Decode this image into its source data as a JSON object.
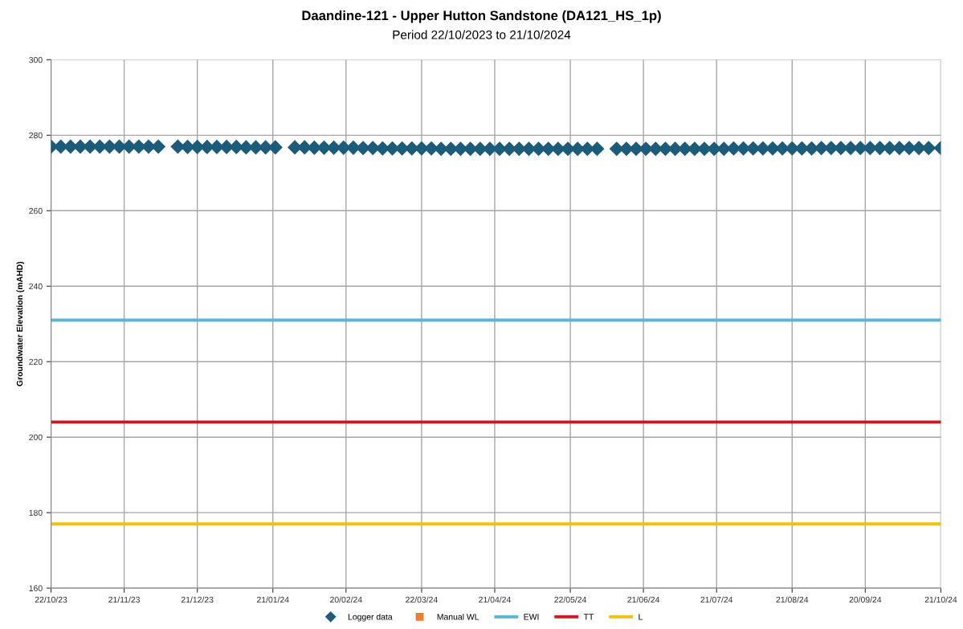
{
  "chart_data": {
    "type": "scatter",
    "title": "Daandine-121 - Upper Hutton Sandstone (DA121_HS_1p)",
    "subtitle": "Period 22/10/2023 to 21/10/2024",
    "ylabel": "Groundwater Elevation (mAHD)",
    "xlim": [
      "2023-10-22",
      "2024-10-21"
    ],
    "xticks": [
      {
        "value": "2023-10-22",
        "label": "22/10/23"
      },
      {
        "value": "2023-11-21",
        "label": "21/11/23"
      },
      {
        "value": "2023-12-21",
        "label": "21/12/23"
      },
      {
        "value": "2024-01-21",
        "label": "21/01/24"
      },
      {
        "value": "2024-02-20",
        "label": "20/02/24"
      },
      {
        "value": "2024-03-22",
        "label": "22/03/24"
      },
      {
        "value": "2024-04-21",
        "label": "21/04/24"
      },
      {
        "value": "2024-05-22",
        "label": "22/05/24"
      },
      {
        "value": "2024-06-21",
        "label": "21/06/24"
      },
      {
        "value": "2024-07-21",
        "label": "21/07/24"
      },
      {
        "value": "2024-08-21",
        "label": "21/08/24"
      },
      {
        "value": "2024-09-20",
        "label": "20/09/24"
      },
      {
        "value": "2024-10-21",
        "label": "21/10/24"
      }
    ],
    "ylim": [
      160,
      300
    ],
    "yticks": [
      160,
      180,
      200,
      220,
      240,
      260,
      280,
      300
    ],
    "grid": true,
    "legend": "bottom",
    "series": [
      {
        "name": "Logger data",
        "marker": "diamond",
        "color": "#1b5c7a",
        "x": [
          "2023-10-22",
          "2023-10-26",
          "2023-10-30",
          "2023-11-03",
          "2023-11-07",
          "2023-11-11",
          "2023-11-15",
          "2023-11-19",
          "2023-11-23",
          "2023-11-27",
          "2023-12-01",
          "2023-12-05",
          "2023-12-09",
          "2023-12-13",
          "2023-12-17",
          "2023-12-21",
          "2023-12-25",
          "2023-12-29",
          "2024-01-02",
          "2024-01-06",
          "2024-01-10",
          "2024-01-14",
          "2024-01-18",
          "2024-01-22",
          "2024-01-26",
          "2024-01-30",
          "2024-02-03",
          "2024-02-07",
          "2024-02-11",
          "2024-02-15",
          "2024-02-19",
          "2024-02-23",
          "2024-02-27",
          "2024-03-02",
          "2024-03-06",
          "2024-03-10",
          "2024-03-14",
          "2024-03-18",
          "2024-03-22",
          "2024-03-26",
          "2024-03-30",
          "2024-04-03",
          "2024-04-07",
          "2024-04-11",
          "2024-04-15",
          "2024-04-19",
          "2024-04-23",
          "2024-04-27",
          "2024-05-01",
          "2024-05-05",
          "2024-05-09",
          "2024-05-13",
          "2024-05-17",
          "2024-05-21",
          "2024-05-25",
          "2024-05-29",
          "2024-06-02",
          "2024-06-06",
          "2024-06-10",
          "2024-06-14",
          "2024-06-18",
          "2024-06-22",
          "2024-06-26",
          "2024-06-30",
          "2024-07-04",
          "2024-07-08",
          "2024-07-12",
          "2024-07-16",
          "2024-07-20",
          "2024-07-24",
          "2024-07-28",
          "2024-08-01",
          "2024-08-05",
          "2024-08-09",
          "2024-08-13",
          "2024-08-17",
          "2024-08-21",
          "2024-08-25",
          "2024-08-29",
          "2024-09-02",
          "2024-09-06",
          "2024-09-10",
          "2024-09-14",
          "2024-09-18",
          "2024-09-22",
          "2024-09-26",
          "2024-09-30",
          "2024-10-04",
          "2024-10-08",
          "2024-10-12",
          "2024-10-16",
          "2024-10-20",
          "2024-10-21"
        ],
        "values": [
          277.0,
          277.0,
          277.0,
          277.0,
          277.0,
          277.0,
          277.0,
          277.0,
          277.0,
          277.0,
          277.0,
          277.0,
          null,
          277.0,
          276.9,
          276.9,
          276.9,
          276.9,
          276.9,
          276.9,
          276.8,
          276.8,
          276.8,
          276.8,
          null,
          276.8,
          276.8,
          276.7,
          276.7,
          276.7,
          276.7,
          276.7,
          276.6,
          276.6,
          276.5,
          276.5,
          276.5,
          276.5,
          276.5,
          276.5,
          276.4,
          276.4,
          276.4,
          276.4,
          276.4,
          276.4,
          276.4,
          276.4,
          276.4,
          276.4,
          276.4,
          276.4,
          276.4,
          276.4,
          276.4,
          276.4,
          276.4,
          null,
          276.4,
          276.4,
          276.4,
          276.4,
          276.4,
          276.4,
          276.4,
          276.4,
          276.4,
          276.4,
          276.4,
          276.4,
          276.5,
          276.5,
          276.5,
          276.5,
          276.5,
          276.5,
          276.5,
          276.5,
          276.5,
          276.6,
          276.6,
          276.6,
          276.6,
          276.6,
          276.6,
          276.6,
          276.6,
          276.6,
          276.6,
          276.6,
          276.6,
          null,
          276.6
        ]
      },
      {
        "name": "Manual WL",
        "marker": "square",
        "color": "#ed7d31"
      },
      {
        "name": "EWI",
        "type": "line",
        "color": "#5bb4da",
        "x": [
          "2023-10-22",
          "2024-10-21"
        ],
        "values": [
          231,
          231
        ]
      },
      {
        "name": "TT",
        "type": "line",
        "color": "#d0161a",
        "x": [
          "2023-10-22",
          "2024-10-21"
        ],
        "values": [
          204,
          204
        ]
      },
      {
        "name": "L",
        "type": "line",
        "color": "#f2c10f",
        "x": [
          "2023-10-22",
          "2024-10-21"
        ],
        "values": [
          177,
          177
        ]
      }
    ]
  }
}
